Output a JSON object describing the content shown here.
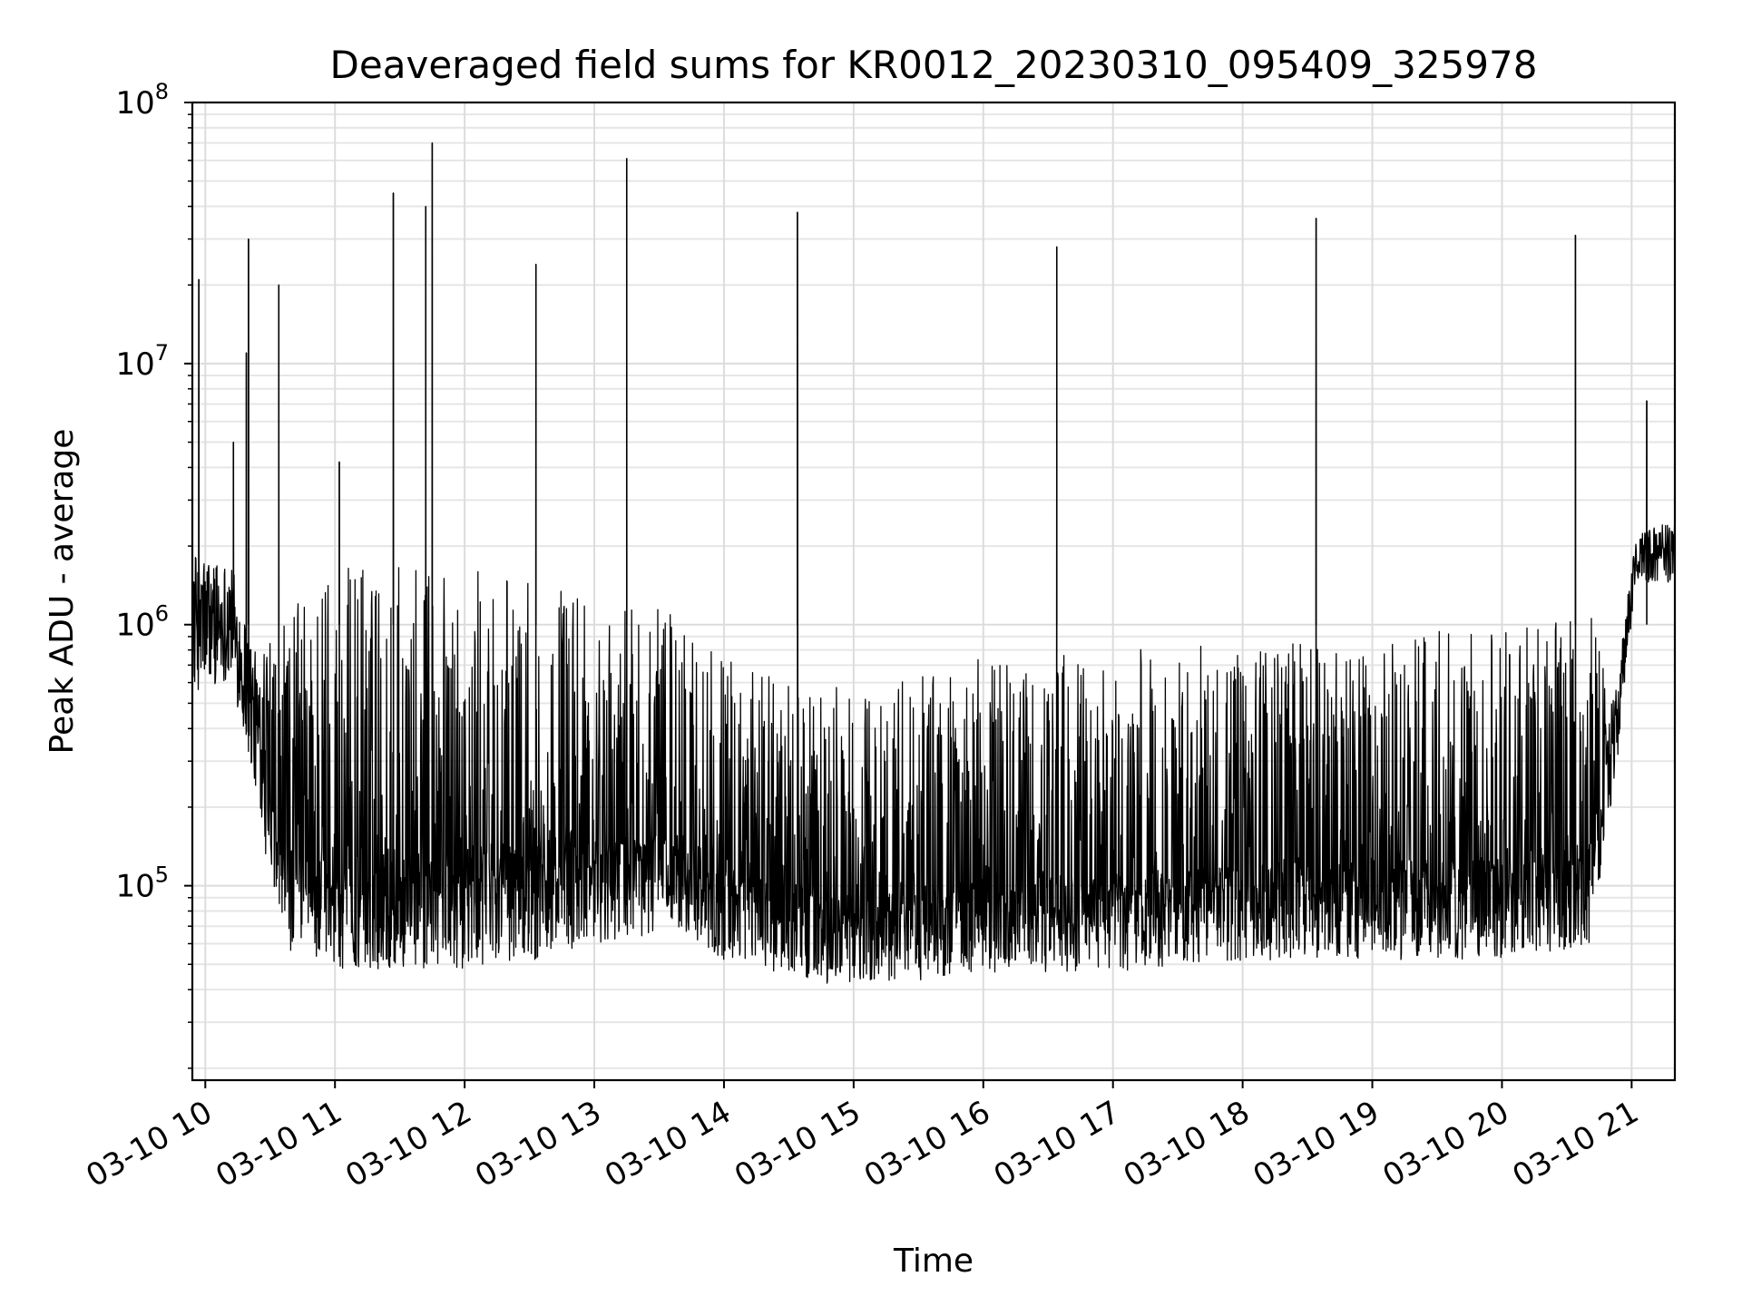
{
  "chart_data": {
    "type": "line",
    "title": "Deaveraged field sums for KR0012_20230310_095409_325978",
    "xlabel": "Time",
    "ylabel": "Peak ADU - average",
    "yscale": "log",
    "ylim": [
      18000,
      100000000
    ],
    "xlim": [
      "2023-03-10 09:54",
      "2023-03-10 21:20"
    ],
    "grid": true,
    "legend": "none",
    "line_color": "#000000",
    "x_ticks": [
      {
        "t": "2023-03-10 10:00",
        "label": "03-10 10"
      },
      {
        "t": "2023-03-10 11:00",
        "label": "03-10 11"
      },
      {
        "t": "2023-03-10 12:00",
        "label": "03-10 12"
      },
      {
        "t": "2023-03-10 13:00",
        "label": "03-10 13"
      },
      {
        "t": "2023-03-10 14:00",
        "label": "03-10 14"
      },
      {
        "t": "2023-03-10 15:00",
        "label": "03-10 15"
      },
      {
        "t": "2023-03-10 16:00",
        "label": "03-10 16"
      },
      {
        "t": "2023-03-10 17:00",
        "label": "03-10 17"
      },
      {
        "t": "2023-03-10 18:00",
        "label": "03-10 18"
      },
      {
        "t": "2023-03-10 19:00",
        "label": "03-10 19"
      },
      {
        "t": "2023-03-10 20:00",
        "label": "03-10 20"
      },
      {
        "t": "2023-03-10 21:00",
        "label": "03-10 21"
      }
    ],
    "y_ticks": [
      {
        "value": 100000,
        "base": "10",
        "exp": "5"
      },
      {
        "value": 1000000,
        "base": "10",
        "exp": "6"
      },
      {
        "value": 10000000,
        "base": "10",
        "exp": "7"
      },
      {
        "value": 100000000,
        "base": "10",
        "exp": "8"
      }
    ],
    "envelope": [
      {
        "t": "2023-03-10 09:54",
        "low": 420000,
        "high": 2500000
      },
      {
        "t": "2023-03-10 10:12",
        "low": 500000,
        "high": 2200000
      },
      {
        "t": "2023-03-10 10:25",
        "low": 150000,
        "high": 900000
      },
      {
        "t": "2023-03-10 10:40",
        "low": 45000,
        "high": 1200000
      },
      {
        "t": "2023-03-10 11:00",
        "low": 40000,
        "high": 1550000
      },
      {
        "t": "2023-03-10 12:00",
        "low": 40000,
        "high": 1550000
      },
      {
        "t": "2023-03-10 12:40",
        "low": 45000,
        "high": 1300000
      },
      {
        "t": "2023-03-10 13:40",
        "low": 60000,
        "high": 1050000
      },
      {
        "t": "2023-03-10 14:00",
        "low": 45000,
        "high": 700000
      },
      {
        "t": "2023-03-10 15:00",
        "low": 35000,
        "high": 550000
      },
      {
        "t": "2023-03-10 16:00",
        "low": 40000,
        "high": 700000
      },
      {
        "t": "2023-03-10 17:00",
        "low": 40000,
        "high": 750000
      },
      {
        "t": "2023-03-10 18:00",
        "low": 45000,
        "high": 800000
      },
      {
        "t": "2023-03-10 19:00",
        "low": 45000,
        "high": 800000
      },
      {
        "t": "2023-03-10 20:00",
        "low": 45000,
        "high": 1000000
      },
      {
        "t": "2023-03-10 20:40",
        "low": 50000,
        "high": 1100000
      },
      {
        "t": "2023-03-10 20:52",
        "low": 200000,
        "high": 600000
      },
      {
        "t": "2023-03-10 21:02",
        "low": 1300000,
        "high": 2500000
      },
      {
        "t": "2023-03-10 21:20",
        "low": 1300000,
        "high": 2800000
      }
    ],
    "spikes": [
      {
        "t": "2023-03-10 09:57",
        "value": 21000000
      },
      {
        "t": "2023-03-10 10:13",
        "value": 5000000
      },
      {
        "t": "2023-03-10 10:19",
        "value": 11000000
      },
      {
        "t": "2023-03-10 10:20",
        "value": 30000000
      },
      {
        "t": "2023-03-10 10:34",
        "value": 20000000
      },
      {
        "t": "2023-03-10 11:02",
        "value": 4200000
      },
      {
        "t": "2023-03-10 11:27",
        "value": 45000000
      },
      {
        "t": "2023-03-10 11:42",
        "value": 40000000
      },
      {
        "t": "2023-03-10 11:45",
        "value": 70000000
      },
      {
        "t": "2023-03-10 12:33",
        "value": 24000000
      },
      {
        "t": "2023-03-10 13:15",
        "value": 61000000
      },
      {
        "t": "2023-03-10 14:34",
        "value": 38000000
      },
      {
        "t": "2023-03-10 16:34",
        "value": 28000000
      },
      {
        "t": "2023-03-10 18:34",
        "value": 36000000
      },
      {
        "t": "2023-03-10 20:34",
        "value": 31000000
      },
      {
        "t": "2023-03-10 21:07",
        "value": 7200000
      }
    ]
  }
}
